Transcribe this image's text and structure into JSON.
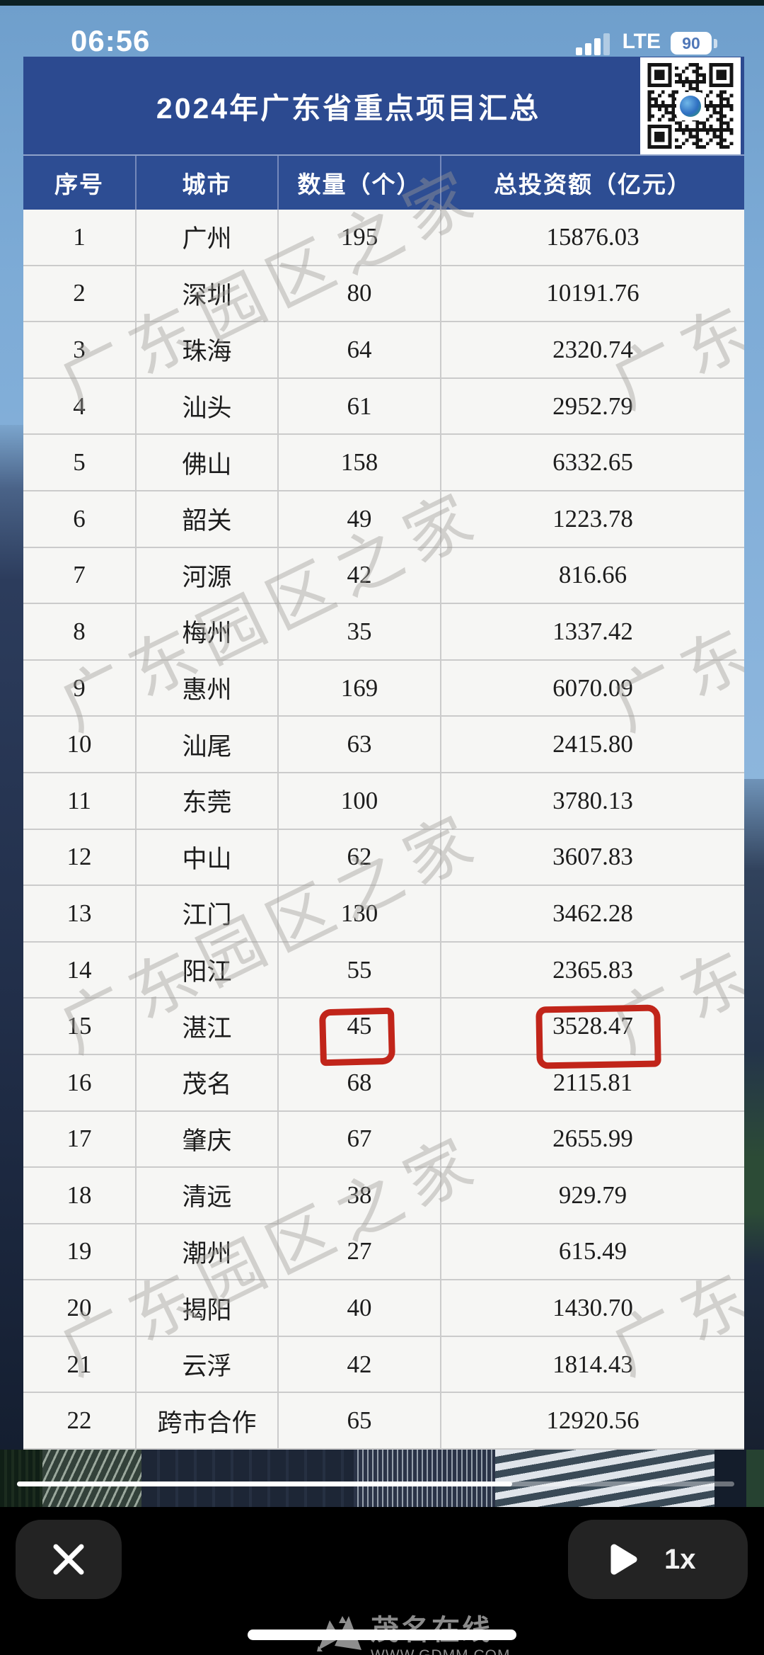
{
  "status_bar": {
    "time": "06:56",
    "network": "LTE",
    "battery_percent": "90"
  },
  "table": {
    "title": "2024年广东省重点项目汇总",
    "columns": [
      "序号",
      "城市",
      "数量（个）",
      "总投资额（亿元）"
    ],
    "rows": [
      [
        "1",
        "广州",
        "195",
        "15876.03"
      ],
      [
        "2",
        "深圳",
        "80",
        "10191.76"
      ],
      [
        "3",
        "珠海",
        "64",
        "2320.74"
      ],
      [
        "4",
        "汕头",
        "61",
        "2952.79"
      ],
      [
        "5",
        "佛山",
        "158",
        "6332.65"
      ],
      [
        "6",
        "韶关",
        "49",
        "1223.78"
      ],
      [
        "7",
        "河源",
        "42",
        "816.66"
      ],
      [
        "8",
        "梅州",
        "35",
        "1337.42"
      ],
      [
        "9",
        "惠州",
        "169",
        "6070.09"
      ],
      [
        "10",
        "汕尾",
        "63",
        "2415.80"
      ],
      [
        "11",
        "东莞",
        "100",
        "3780.13"
      ],
      [
        "12",
        "中山",
        "62",
        "3607.83"
      ],
      [
        "13",
        "江门",
        "130",
        "3462.28"
      ],
      [
        "14",
        "阳江",
        "55",
        "2365.83"
      ],
      [
        "15",
        "湛江",
        "45",
        "3528.47"
      ],
      [
        "16",
        "茂名",
        "68",
        "2115.81"
      ],
      [
        "17",
        "肇庆",
        "67",
        "2655.99"
      ],
      [
        "18",
        "清远",
        "38",
        "929.79"
      ],
      [
        "19",
        "潮州",
        "27",
        "615.49"
      ],
      [
        "20",
        "揭阳",
        "40",
        "1430.70"
      ],
      [
        "21",
        "云浮",
        "42",
        "1814.43"
      ],
      [
        "22",
        "跨市合作",
        "65",
        "12920.56"
      ]
    ],
    "annotations": {
      "circled_row": "15",
      "circled_values": [
        "45",
        "3528.47"
      ],
      "marker_color": "#c1251a"
    }
  },
  "watermark": {
    "text": "广东园区之家"
  },
  "player": {
    "speed": "1x",
    "progress_percent": 69
  },
  "site_watermark": {
    "name": "茂名在线",
    "url": "WWW.GDMM.COM"
  },
  "icons": {
    "close": "x-icon",
    "play": "play-triangle-icon",
    "signal": "signal-bars-icon",
    "battery": "battery-icon",
    "qr": "qr-code-icon"
  },
  "colors": {
    "banner_blue": "#2c4a90",
    "header_blue": "#2d4d93",
    "table_bg": "#f6f6f4",
    "gridline": "#cbcbcb",
    "annotation_red": "#c1251a",
    "sky_blue": "#7dabd6",
    "player_bar": "#000000",
    "button_gray": "#232323"
  }
}
